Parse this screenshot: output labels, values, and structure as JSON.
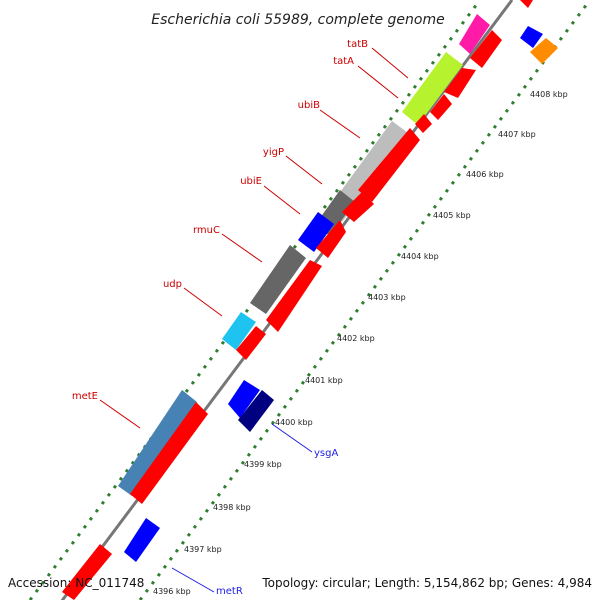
{
  "title": "Escherichia coli 55989, complete genome",
  "footer": {
    "accession": "Accession: NC_011748",
    "topology": "Topology: circular; Length: 5,154,862 bp; Genes: 4,984"
  },
  "ticks": [
    "4396 kbp",
    "4397 kbp",
    "4398 kbp",
    "4399 kbp",
    "4400 kbp",
    "4401 kbp",
    "4402 kbp",
    "4403 kbp",
    "4404 kbp",
    "4405 kbp",
    "4406 kbp",
    "4407 kbp",
    "4408 kbp"
  ],
  "colors": {
    "background": "#ffffff",
    "backbone": "#777777",
    "gc_dots": "#2e7d32",
    "forward_red": "#ff0000",
    "label_forward": "#cc0000",
    "label_reverse": "#1d1de0"
  },
  "gene_labels": [
    {
      "text": "tatB",
      "strand": "forward"
    },
    {
      "text": "tatA",
      "strand": "forward"
    },
    {
      "text": "ubiB",
      "strand": "forward"
    },
    {
      "text": "yigP",
      "strand": "forward"
    },
    {
      "text": "ubiE",
      "strand": "forward"
    },
    {
      "text": "rmuC",
      "strand": "forward"
    },
    {
      "text": "udp",
      "strand": "forward"
    },
    {
      "text": "metE",
      "strand": "forward"
    },
    {
      "text": "ysgA",
      "strand": "reverse"
    },
    {
      "text": "metR",
      "strand": "reverse"
    }
  ],
  "feature_colors": [
    "#ff0000",
    "#ff1aa8",
    "#b6f22e",
    "#bdbdbd",
    "#666666",
    "#0000ff",
    "#1fc3ef",
    "#4682b4",
    "#000080",
    "#ff8c00"
  ]
}
